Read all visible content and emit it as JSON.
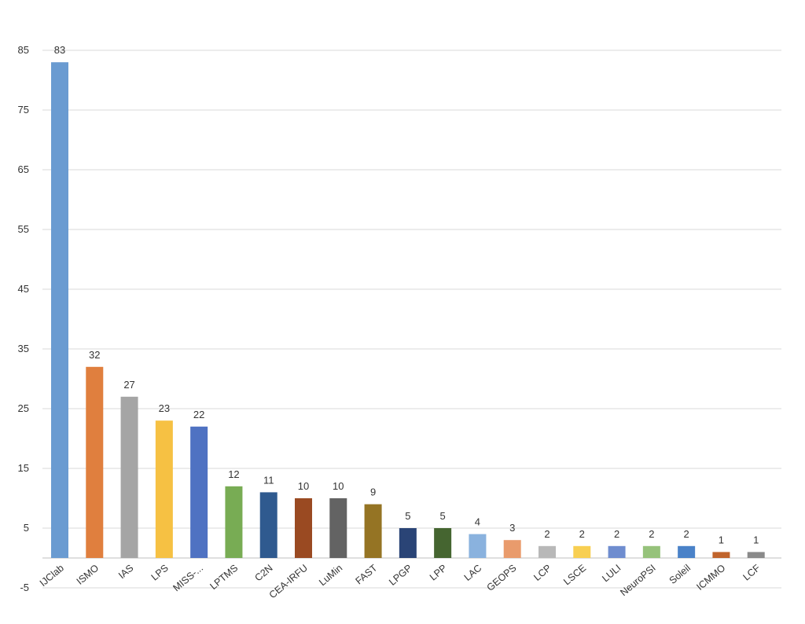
{
  "chart_data": {
    "type": "bar",
    "categories": [
      "IJClab",
      "ISMO",
      "IAS",
      "LPS",
      "MISS-...",
      "LPTMS",
      "C2N",
      "CEA-IRFU",
      "LuMin",
      "FAST",
      "LPGP",
      "LPP",
      "LAC",
      "GEOPS",
      "LCP",
      "LSCE",
      "LULI",
      "NeuroPSI",
      "Soleil",
      "ICMMO",
      "LCF"
    ],
    "values": [
      83,
      32,
      27,
      23,
      22,
      12,
      11,
      10,
      10,
      9,
      5,
      5,
      4,
      3,
      2,
      2,
      2,
      2,
      2,
      1,
      1
    ],
    "colors": [
      "#6a9bd1",
      "#e07f3e",
      "#a5a5a5",
      "#f6c143",
      "#4f72c2",
      "#78ac54",
      "#2f5a8f",
      "#9a4a22",
      "#636363",
      "#957424",
      "#2a4476",
      "#456530",
      "#8ab2de",
      "#e99b6c",
      "#b8b8b8",
      "#f8cf52",
      "#6f8dcf",
      "#96c27b",
      "#4a82c8",
      "#c0642c",
      "#8a8a8a"
    ],
    "yticks": [
      -5,
      5,
      15,
      25,
      35,
      45,
      55,
      65,
      75,
      85
    ],
    "ylim": [
      -5,
      85
    ],
    "grid": true,
    "title": "",
    "xlabel": "",
    "ylabel": ""
  }
}
